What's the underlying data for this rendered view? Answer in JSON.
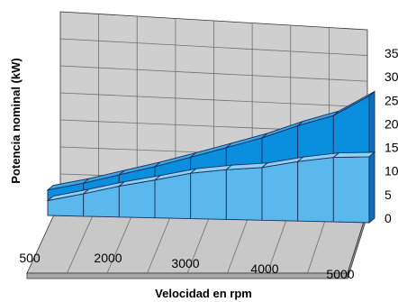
{
  "chart_data": {
    "type": "area",
    "title": "",
    "xlabel": "Velocidad en rpm",
    "ylabel": "Potencia nominal (kW)",
    "x": [
      1000,
      1500,
      2000,
      2500,
      3000,
      3500,
      4000,
      4500,
      5000,
      5500
    ],
    "x_ticks": [
      "500",
      "2000",
      "3000",
      "4000",
      "5000"
    ],
    "y_ticks": [
      "0",
      "5",
      "10",
      "15",
      "20",
      "25",
      "30",
      "35"
    ],
    "ylim": [
      0,
      35
    ],
    "series": [
      {
        "values": [
          3.2,
          4.9,
          6.8,
          8.4,
          10.2,
          11.3,
          12.1,
          13.8,
          15.1,
          15.6
        ]
      },
      {
        "values": [
          5.5,
          7.2,
          9.3,
          11.4,
          13.8,
          16.3,
          18.9,
          22.1,
          24.9,
          30.0
        ]
      }
    ],
    "grid": true,
    "colors": {
      "lower_front": "#5bb8ec",
      "upper_front": "#0a8fde",
      "lower_top": "#8fd0f5",
      "upper_top": "#3aa7e8",
      "side": "#0a6fc0",
      "wall": "#cfcfcf",
      "floor": "#c8c8c8"
    }
  }
}
